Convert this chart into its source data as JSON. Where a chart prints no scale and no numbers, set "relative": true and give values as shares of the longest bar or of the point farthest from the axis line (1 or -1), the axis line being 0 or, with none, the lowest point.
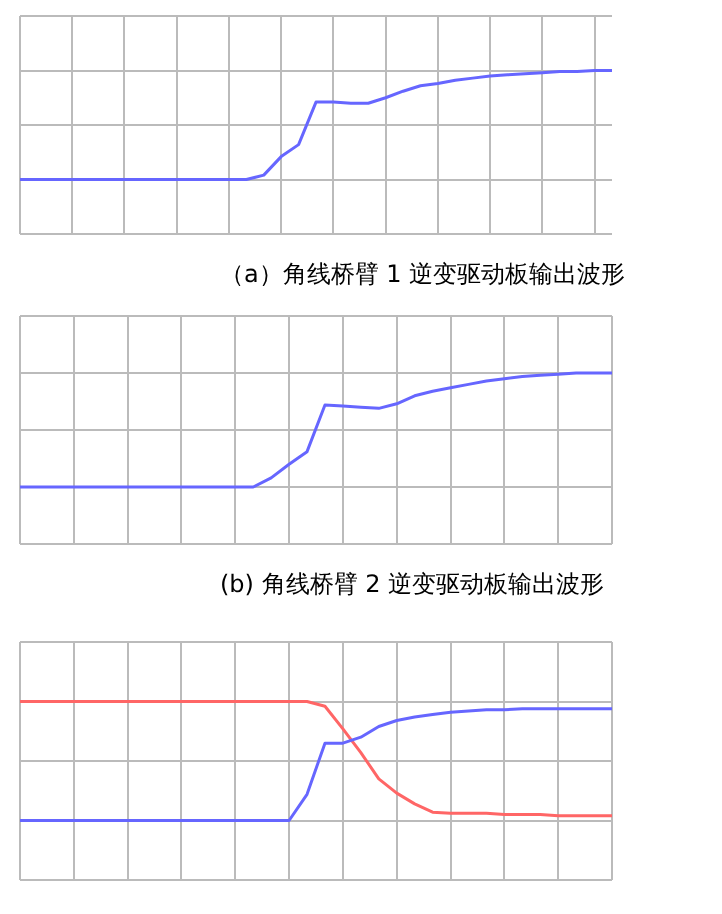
{
  "chart_data": [
    {
      "type": "line",
      "title": "（a）角线桥臂 1 逆变驱动板输出波形",
      "relative": true,
      "grid": true,
      "categories": [
        null,
        null,
        null,
        null,
        null,
        null,
        null,
        null,
        null,
        null,
        null,
        null,
        null,
        null,
        null,
        null,
        null,
        null,
        null,
        null,
        null,
        null,
        null,
        null,
        null,
        null,
        null,
        null,
        null,
        null,
        null,
        null,
        null,
        null,
        null
      ],
      "series": [
        {
          "color": "#6666ff",
          "values": [
            0,
            0,
            0,
            0,
            0,
            0,
            0,
            0,
            0,
            0,
            0,
            0,
            0,
            0,
            0.04,
            0.21,
            0.32,
            0.71,
            0.71,
            0.7,
            0.7,
            0.75,
            0.81,
            0.86,
            0.88,
            0.91,
            0.93,
            0.95,
            0.96,
            0.97,
            0.98,
            0.99,
            0.99,
            1,
            1
          ]
        }
      ]
    },
    {
      "type": "line",
      "title": "(b) 角线桥臂 2 逆变驱动板输出波形",
      "relative": true,
      "grid": true,
      "categories": [
        null,
        null,
        null,
        null,
        null,
        null,
        null,
        null,
        null,
        null,
        null,
        null,
        null,
        null,
        null,
        null,
        null,
        null,
        null,
        null,
        null,
        null,
        null,
        null,
        null,
        null,
        null,
        null,
        null,
        null,
        null,
        null,
        null,
        null
      ],
      "series": [
        {
          "color": "#6666ff",
          "values": [
            0,
            0,
            0,
            0,
            0,
            0,
            0,
            0,
            0,
            0,
            0,
            0,
            0,
            0,
            0.08,
            0.2,
            0.31,
            0.72,
            0.71,
            0.7,
            0.69,
            0.73,
            0.8,
            0.84,
            0.87,
            0.9,
            0.93,
            0.95,
            0.97,
            0.98,
            0.99,
            1,
            1,
            1
          ]
        }
      ]
    },
    {
      "type": "line",
      "relative": true,
      "grid": true,
      "categories": [
        null,
        null,
        null,
        null,
        null,
        null,
        null,
        null,
        null,
        null,
        null,
        null,
        null,
        null,
        null,
        null,
        null,
        null,
        null,
        null,
        null,
        null,
        null,
        null,
        null,
        null,
        null,
        null,
        null,
        null,
        null,
        null,
        null,
        null
      ],
      "series": [
        {
          "color": "#6666ff",
          "values": [
            0,
            0,
            0,
            0,
            0,
            0,
            0,
            0,
            0,
            0,
            0,
            0,
            0,
            0,
            0,
            0,
            0.22,
            0.65,
            0.65,
            0.7,
            0.79,
            0.84,
            0.87,
            0.89,
            0.91,
            0.92,
            0.93,
            0.93,
            0.94,
            0.94,
            0.94,
            0.94,
            0.94,
            0.94
          ]
        },
        {
          "color": "#ff6666",
          "values": [
            1,
            1,
            1,
            1,
            1,
            1,
            1,
            1,
            1,
            1,
            1,
            1,
            1,
            1,
            1,
            1,
            1,
            0.96,
            0.77,
            0.57,
            0.35,
            0.23,
            0.14,
            0.07,
            0.06,
            0.06,
            0.06,
            0.05,
            0.05,
            0.05,
            0.04,
            0.04,
            0.04,
            0.04
          ]
        }
      ]
    }
  ]
}
